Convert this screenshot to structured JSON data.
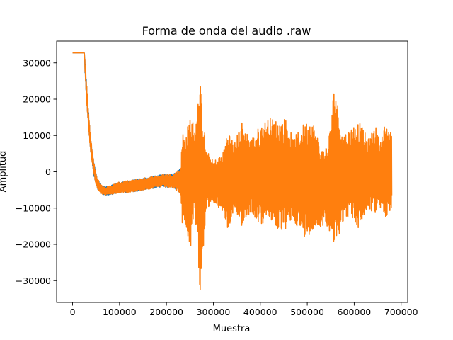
{
  "chart_data": {
    "type": "line",
    "title": "Forma de onda del audio .raw",
    "xlabel": "Muestra",
    "ylabel": "Amplitud",
    "xlim": [
      -34000,
      714000
    ],
    "ylim": [
      -36000,
      36000
    ],
    "x_ticks": [
      0,
      100000,
      200000,
      300000,
      400000,
      500000,
      600000,
      700000
    ],
    "x_tick_labels": [
      "0",
      "100000",
      "200000",
      "300000",
      "400000",
      "500000",
      "600000",
      "700000"
    ],
    "y_ticks": [
      -30000,
      -20000,
      -10000,
      0,
      10000,
      20000,
      30000
    ],
    "y_tick_labels": [
      "−30000",
      "−20000",
      "−10000",
      "0",
      "10000",
      "20000",
      "30000"
    ],
    "grid": false,
    "legend": "none",
    "series": [
      {
        "color": "#1f77b4",
        "envelope": {
          "x": [
            0,
            25000,
            27000,
            32000,
            38000,
            45000,
            52000,
            60000,
            70000,
            85000,
            100000,
            130000,
            160000,
            190000,
            215000,
            230000
          ],
          "upper": [
            32767,
            32767,
            30000,
            20000,
            10000,
            3000,
            -1500,
            -3500,
            -4200,
            -3500,
            -2800,
            -2200,
            -1500,
            -800,
            -500,
            1000
          ],
          "lower": [
            32767,
            32767,
            26000,
            15000,
            6000,
            -1000,
            -4500,
            -6000,
            -6500,
            -6200,
            -5800,
            -5500,
            -4800,
            -4200,
            -4500,
            -6000
          ]
        }
      },
      {
        "color": "#ff7f0e",
        "envelope": {
          "x": [
            0,
            25000,
            27000,
            32000,
            38000,
            45000,
            52000,
            60000,
            70000,
            85000,
            100000,
            130000,
            160000,
            190000,
            215000,
            230000,
            235000,
            240000,
            250000,
            260000,
            272000,
            285000,
            300000,
            320000,
            330000,
            345000,
            360000,
            380000,
            400000,
            420000,
            440000,
            455000,
            470000,
            490000,
            510000,
            530000,
            545000,
            558000,
            575000,
            590000,
            610000,
            630000,
            645000,
            655000,
            665000,
            680000
          ],
          "upper": [
            32767,
            32767,
            30000,
            20000,
            10000,
            3000,
            -1500,
            -3500,
            -4200,
            -3500,
            -2800,
            -2200,
            -1500,
            -800,
            -500,
            1000,
            12000,
            9000,
            16000,
            13000,
            24500,
            6000,
            3000,
            5000,
            12000,
            8000,
            14000,
            9000,
            13000,
            15000,
            14000,
            15000,
            9000,
            13000,
            15000,
            6000,
            8000,
            25000,
            10000,
            12000,
            14000,
            9000,
            13000,
            8000,
            13000,
            12000
          ],
          "lower": [
            32767,
            32767,
            26000,
            15000,
            6000,
            -1000,
            -4500,
            -6000,
            -6500,
            -6200,
            -5800,
            -5500,
            -4800,
            -4200,
            -4500,
            -6000,
            -17000,
            -13000,
            -23000,
            -12000,
            -33000,
            -10000,
            -9000,
            -11000,
            -16000,
            -12000,
            -15000,
            -11000,
            -15000,
            -13000,
            -17000,
            -16000,
            -13000,
            -18000,
            -17000,
            -15000,
            -15000,
            -22000,
            -14000,
            -12000,
            -16000,
            -10000,
            -12000,
            -10000,
            -13000,
            -10000
          ]
        }
      }
    ]
  }
}
